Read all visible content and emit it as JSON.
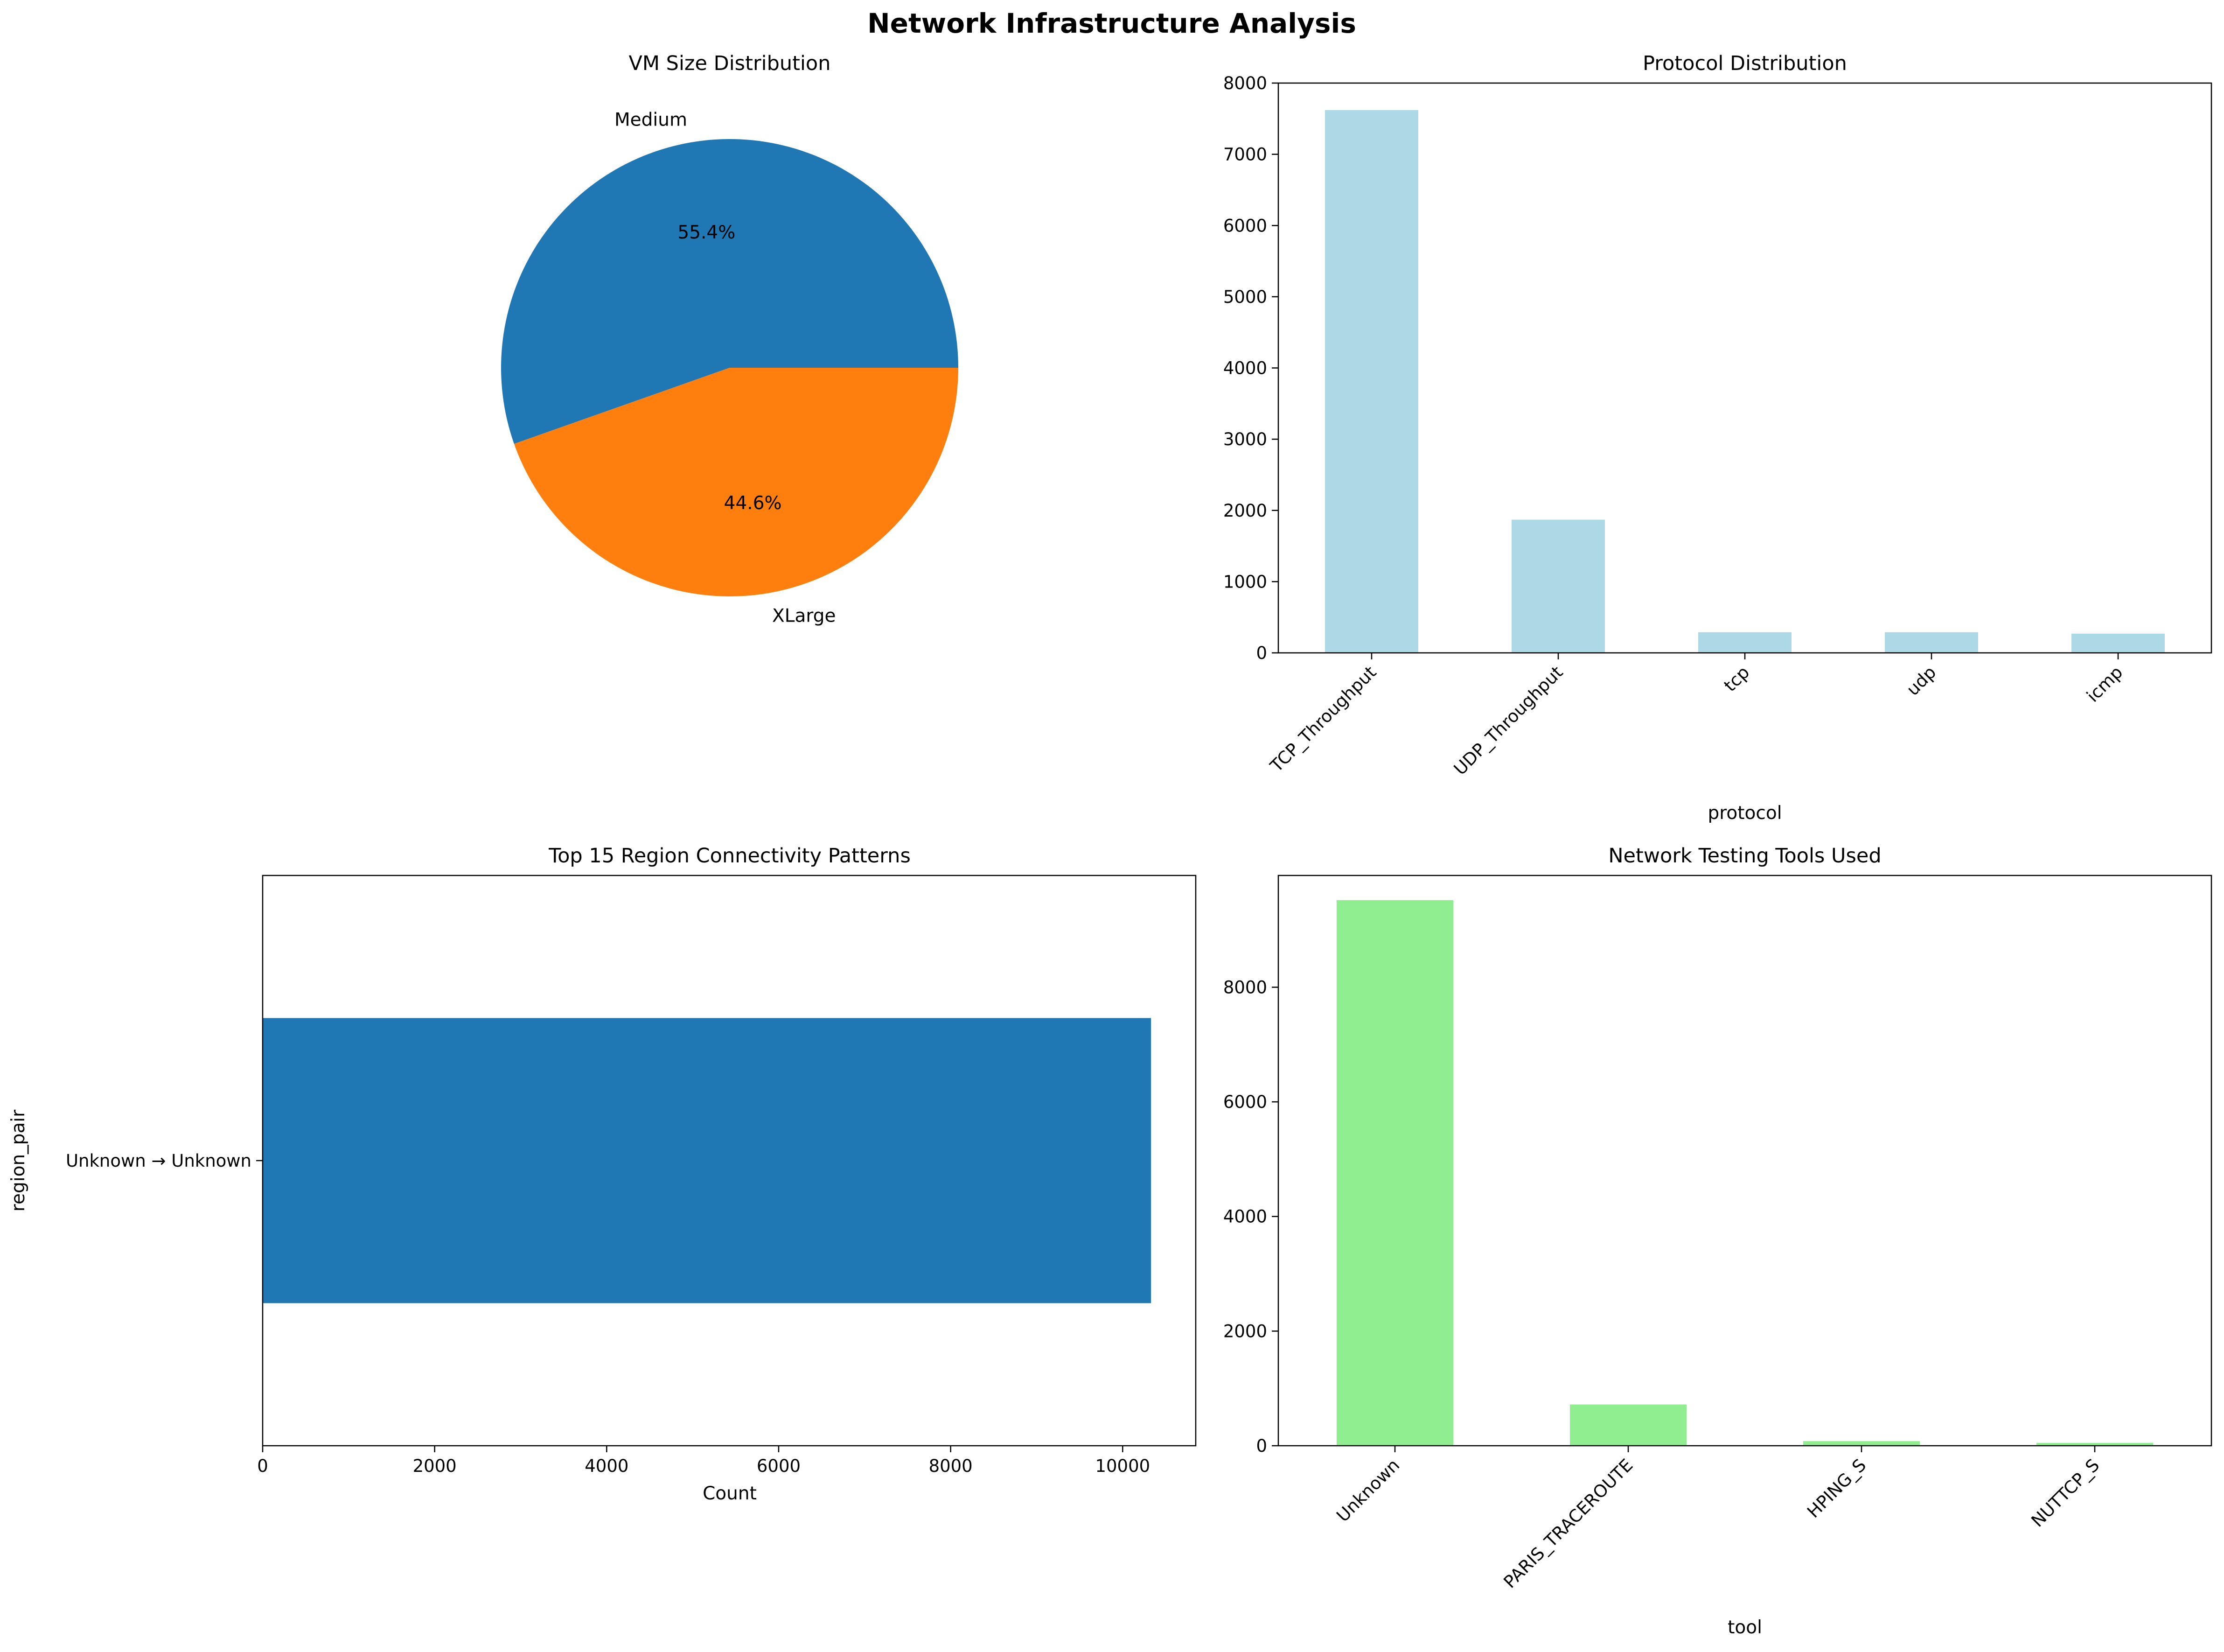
{
  "figure": {
    "title": "Network Infrastructure Analysis"
  },
  "chart_data": [
    {
      "type": "pie",
      "title": "VM Size Distribution",
      "labels": [
        "Medium",
        "XLarge"
      ],
      "values": [
        55.4,
        44.6
      ],
      "pct_labels": [
        "55.4%",
        "44.6%"
      ],
      "colors": [
        "#1f77b4",
        "#ff7f0e"
      ]
    },
    {
      "type": "bar",
      "title": "Protocol Distribution",
      "xlabel": "protocol",
      "ylabel": "",
      "categories": [
        "TCP_Throughput",
        "UDP_Throughput",
        "tcp",
        "udp",
        "icmp"
      ],
      "values": [
        7620,
        1870,
        290,
        290,
        270
      ],
      "ylim": [
        0,
        8000
      ],
      "yticks": [
        0,
        1000,
        2000,
        3000,
        4000,
        5000,
        6000,
        7000,
        8000
      ],
      "color": "#add8e6",
      "grid": false
    },
    {
      "type": "barh",
      "title": "Top 15 Region Connectivity Patterns",
      "xlabel": "Count",
      "ylabel": "region_pair",
      "categories": [
        "Unknown → Unknown"
      ],
      "values": [
        10330
      ],
      "xlim": [
        0,
        10850
      ],
      "xticks": [
        0,
        2000,
        4000,
        6000,
        8000,
        10000
      ],
      "color": "#1f77b4",
      "grid": false
    },
    {
      "type": "bar",
      "title": "Network Testing Tools Used",
      "xlabel": "tool",
      "ylabel": "",
      "categories": [
        "Unknown",
        "PARIS_TRACEROUTE",
        "HPING_S",
        "NUTTCP_S"
      ],
      "values": [
        9520,
        720,
        80,
        50
      ],
      "ylim": [
        0,
        9950
      ],
      "yticks": [
        0,
        2000,
        4000,
        6000,
        8000
      ],
      "color": "#90ee90",
      "grid": false
    }
  ]
}
